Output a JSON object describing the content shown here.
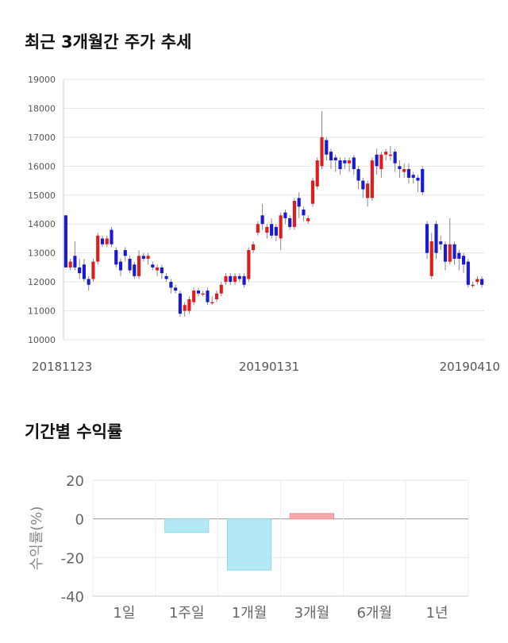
{
  "sections": {
    "price_title": "최근 3개월간 주가 추세",
    "return_title": "기간별 수익률"
  },
  "chart_data": [
    {
      "type": "candlestick",
      "title": "최근 3개월간 주가 추세",
      "ylim": [
        10000,
        19000
      ],
      "yticks": [
        "19000",
        "18000",
        "17000",
        "16000",
        "15000",
        "14000",
        "13000",
        "12000",
        "11000",
        "10000"
      ],
      "xticks": [
        "20181123",
        "20190131",
        "20190410"
      ],
      "grid": true,
      "colors": {
        "up": "#e01c1c",
        "down": "#1a1ad0",
        "wick": "#888888"
      },
      "candles": [
        [
          14300,
          12500,
          14300,
          12500
        ],
        [
          12500,
          12700,
          12800,
          12400
        ],
        [
          12900,
          12500,
          13400,
          12400
        ],
        [
          12500,
          12300,
          12800,
          12100
        ],
        [
          12600,
          12100,
          12800,
          12000
        ],
        [
          12100,
          11900,
          12200,
          11700
        ],
        [
          12100,
          12700,
          12800,
          12000
        ],
        [
          12700,
          13600,
          13700,
          12600
        ],
        [
          13500,
          13300,
          13600,
          13200
        ],
        [
          13300,
          13500,
          13600,
          13200
        ],
        [
          13800,
          13300,
          13900,
          13200
        ],
        [
          13100,
          12600,
          13200,
          12500
        ],
        [
          12700,
          12400,
          12800,
          12200
        ],
        [
          13100,
          12900,
          13200,
          12700
        ],
        [
          12800,
          12400,
          12900,
          12300
        ],
        [
          12600,
          12200,
          12700,
          12100
        ],
        [
          12200,
          12900,
          13100,
          12100
        ],
        [
          12900,
          12800,
          13000,
          12700
        ],
        [
          12800,
          12900,
          13000,
          12600
        ],
        [
          12600,
          12500,
          12700,
          12400
        ],
        [
          12400,
          12500,
          12600,
          12200
        ],
        [
          12500,
          12300,
          12600,
          12100
        ],
        [
          12200,
          12100,
          12300,
          12000
        ],
        [
          12000,
          11800,
          12100,
          11600
        ],
        [
          11800,
          11700,
          11900,
          11600
        ],
        [
          11600,
          10900,
          11700,
          10800
        ],
        [
          11000,
          11200,
          11300,
          10800
        ],
        [
          11000,
          11400,
          11500,
          10900
        ],
        [
          11300,
          11700,
          11800,
          11200
        ],
        [
          11700,
          11600,
          11800,
          11500
        ],
        [
          11600,
          11600,
          11700,
          11500
        ],
        [
          11700,
          11300,
          11800,
          11200
        ],
        [
          11300,
          11300,
          11500,
          11200
        ],
        [
          11400,
          11600,
          11700,
          11300
        ],
        [
          11600,
          11900,
          12000,
          11500
        ],
        [
          12000,
          12200,
          12300,
          11900
        ],
        [
          12200,
          12000,
          12300,
          11900
        ],
        [
          12000,
          12200,
          12300,
          11900
        ],
        [
          12200,
          12100,
          12300,
          12000
        ],
        [
          12200,
          11900,
          12300,
          11800
        ],
        [
          12100,
          13100,
          13200,
          12000
        ],
        [
          13100,
          13300,
          13400,
          13000
        ],
        [
          13700,
          14000,
          14100,
          13600
        ],
        [
          14300,
          14000,
          14700,
          13800
        ],
        [
          13700,
          13900,
          14000,
          13500
        ],
        [
          14000,
          13600,
          14200,
          13500
        ],
        [
          13900,
          13600,
          14000,
          13400
        ],
        [
          13500,
          14300,
          14400,
          13100
        ],
        [
          14400,
          14200,
          14500,
          14000
        ],
        [
          14200,
          13900,
          14300,
          13800
        ],
        [
          13900,
          14800,
          14900,
          13800
        ],
        [
          14900,
          14600,
          15100,
          14200
        ],
        [
          14500,
          14300,
          14600,
          14100
        ],
        [
          14100,
          14200,
          14300,
          14000
        ],
        [
          14700,
          15500,
          15600,
          14600
        ],
        [
          15300,
          16200,
          16300,
          15200
        ],
        [
          16000,
          17000,
          17900,
          15900
        ],
        [
          16900,
          16400,
          17000,
          16200
        ],
        [
          16500,
          16200,
          16600,
          15900
        ],
        [
          16300,
          16200,
          16400,
          15800
        ],
        [
          16200,
          15900,
          16300,
          15700
        ],
        [
          16200,
          16100,
          16300,
          15900
        ],
        [
          16100,
          16200,
          16300,
          15800
        ],
        [
          16300,
          15900,
          16400,
          15700
        ],
        [
          15900,
          15500,
          16000,
          15200
        ],
        [
          15500,
          15200,
          15600,
          14900
        ],
        [
          14900,
          15400,
          15500,
          14600
        ],
        [
          14900,
          16200,
          16300,
          14800
        ],
        [
          16400,
          16000,
          16600,
          15700
        ],
        [
          15900,
          16400,
          16500,
          15600
        ],
        [
          16400,
          16500,
          16600,
          16200
        ],
        [
          16400,
          16400,
          16700,
          16200
        ],
        [
          16500,
          16100,
          16600,
          15800
        ],
        [
          16000,
          15900,
          16200,
          15600
        ],
        [
          15800,
          15900,
          16100,
          15600
        ],
        [
          15900,
          15600,
          16100,
          15400
        ],
        [
          15700,
          15600,
          15800,
          15400
        ],
        [
          15600,
          15500,
          15700,
          15100
        ],
        [
          15900,
          15100,
          16000,
          15000
        ],
        [
          14000,
          13000,
          14100,
          12800
        ],
        [
          12200,
          13400,
          13700,
          12100
        ],
        [
          14000,
          13000,
          14100,
          12800
        ],
        [
          13400,
          13300,
          13600,
          13100
        ],
        [
          13300,
          12700,
          13400,
          12400
        ],
        [
          12700,
          13300,
          14200,
          12600
        ],
        [
          13300,
          12800,
          13400,
          12600
        ],
        [
          13000,
          12800,
          13100,
          12400
        ],
        [
          12900,
          12600,
          13000,
          12300
        ],
        [
          12700,
          11900,
          12800,
          11800
        ],
        [
          11900,
          11900,
          12000,
          11800
        ],
        [
          12000,
          12100,
          12200,
          11900
        ],
        [
          12100,
          11900,
          12200,
          11800
        ]
      ]
    },
    {
      "type": "bar",
      "title": "기간별 수익률",
      "ylabel": "수익률(%)",
      "ylim": [
        -40,
        20
      ],
      "yticks": [
        "20",
        "0",
        "-20",
        "-40"
      ],
      "categories": [
        "1일",
        "1주일",
        "1개월",
        "3개월",
        "6개월",
        "1년"
      ],
      "values": [
        0,
        -7,
        -26.5,
        2.8,
        0,
        0
      ],
      "grid": true,
      "colors": {
        "positive": "#f7a9ad",
        "negative": "#b3e9f4",
        "positive_edge": "#f38d93",
        "negative_edge": "#94d8e6"
      }
    }
  ]
}
